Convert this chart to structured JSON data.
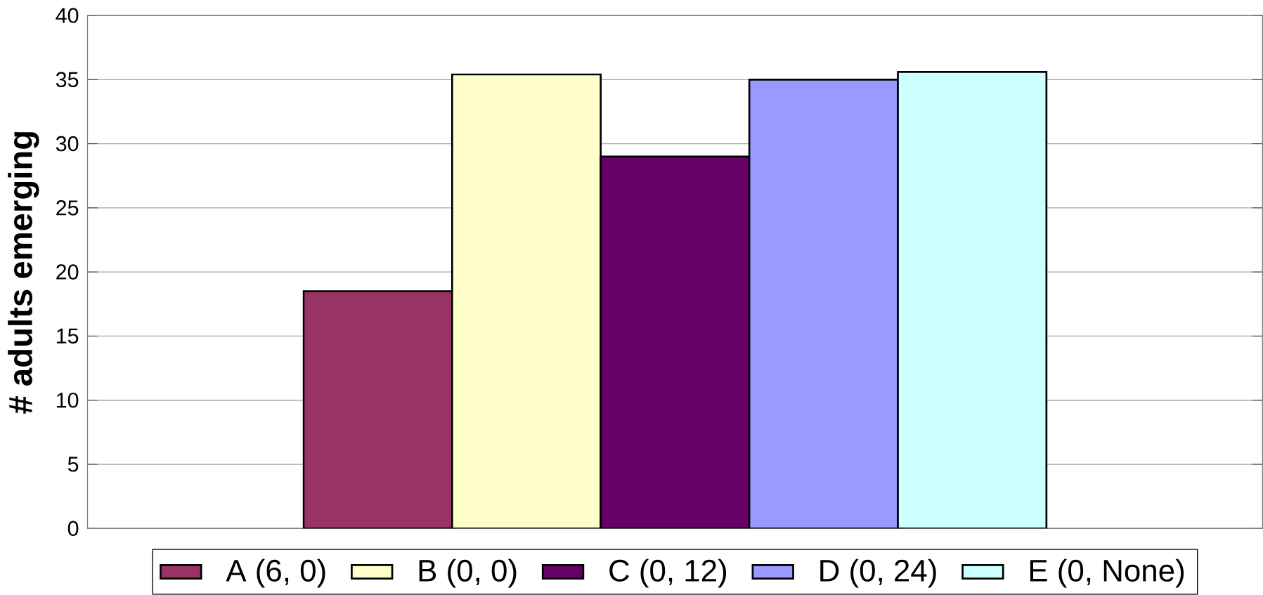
{
  "chart_data": {
    "type": "bar",
    "ylabel": "# adults emerging",
    "categories": [
      null
    ],
    "series": [
      {
        "name": "A (6, 0)",
        "color": "#993366",
        "values": [
          18.5
        ]
      },
      {
        "name": "B (0, 0)",
        "color": "#ffffcc",
        "values": [
          35.4
        ]
      },
      {
        "name": "C (0, 12)",
        "color": "#660066",
        "values": [
          29.0
        ]
      },
      {
        "name": "D (0, 24)",
        "color": "#9999ff",
        "values": [
          35.0
        ]
      },
      {
        "name": "E (0, None)",
        "color": "#ccffff",
        "values": [
          35.6
        ]
      }
    ],
    "ylim": [
      0,
      40
    ],
    "yticks": [
      0,
      5,
      10,
      15,
      20,
      25,
      30,
      35,
      40
    ],
    "grid": "y",
    "legend": "bottom"
  }
}
